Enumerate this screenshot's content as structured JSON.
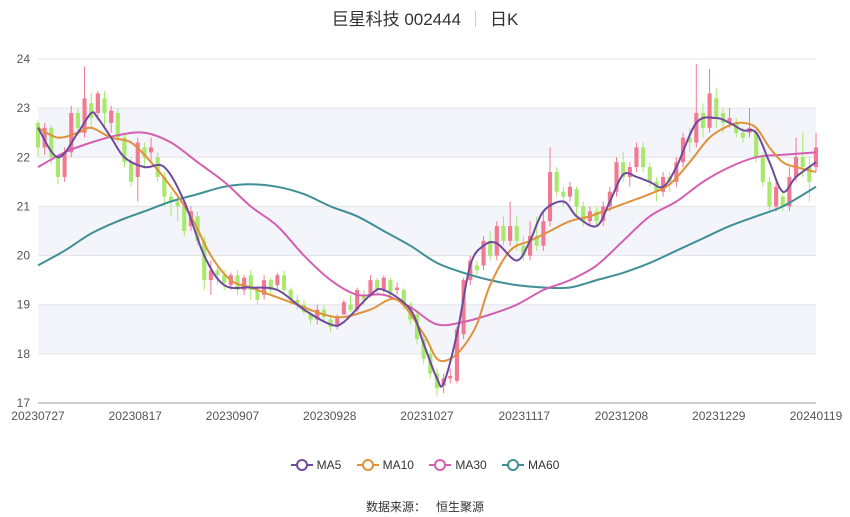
{
  "header": {
    "stock": "巨星科技 002444",
    "period": "日K"
  },
  "source": {
    "label": "数据来源：",
    "value": "恒生聚源"
  },
  "colors": {
    "up": "#f17a92",
    "down": "#a8e86a",
    "MA5": "#6e4a9e",
    "MA10": "#e0913b",
    "MA30": "#d45fb0",
    "MA60": "#3f8f94",
    "band": "#f4f5fa"
  },
  "chart_data": {
    "type": "candlestick",
    "y_ticks": [
      17,
      18,
      19,
      20,
      21,
      22,
      23,
      24
    ],
    "ylim": [
      17,
      24
    ],
    "x_ticks": [
      "20230727",
      "20230817",
      "20230907",
      "20230928",
      "20231027",
      "20231117",
      "20231208",
      "20231229",
      "20240119"
    ],
    "legend": [
      "MA5",
      "MA10",
      "MA30",
      "MA60"
    ],
    "candle_count": 118,
    "candles": [
      [
        22.7,
        22.2,
        22.75,
        22.0
      ],
      [
        22.2,
        22.6,
        22.7,
        22.05
      ],
      [
        22.6,
        22.0,
        22.65,
        21.85
      ],
      [
        22.0,
        21.6,
        22.05,
        21.45
      ],
      [
        21.6,
        22.1,
        22.2,
        21.5
      ],
      [
        22.1,
        22.9,
        23.05,
        22.0
      ],
      [
        22.9,
        22.6,
        23.0,
        22.45
      ],
      [
        22.5,
        23.2,
        23.85,
        22.4
      ],
      [
        23.1,
        22.8,
        23.3,
        22.6
      ],
      [
        22.9,
        23.3,
        23.35,
        22.75
      ],
      [
        23.2,
        22.9,
        23.35,
        22.6
      ],
      [
        22.7,
        22.95,
        23.05,
        22.5
      ],
      [
        22.9,
        22.4,
        23.0,
        22.3
      ],
      [
        22.4,
        21.9,
        22.5,
        21.8
      ],
      [
        21.9,
        21.5,
        22.0,
        21.4
      ],
      [
        21.6,
        22.3,
        22.4,
        21.1
      ],
      [
        22.2,
        22.0,
        22.3,
        21.8
      ],
      [
        22.1,
        22.2,
        22.4,
        21.9
      ],
      [
        22.0,
        21.6,
        22.1,
        21.5
      ],
      [
        21.6,
        21.2,
        21.7,
        21.0
      ],
      [
        21.2,
        21.1,
        21.3,
        20.8
      ],
      [
        21.1,
        21.0,
        21.2,
        20.7
      ],
      [
        21.0,
        20.5,
        21.1,
        20.4
      ],
      [
        20.6,
        20.9,
        21.0,
        20.5
      ],
      [
        20.8,
        20.3,
        20.9,
        20.2
      ],
      [
        20.3,
        19.5,
        20.4,
        19.3
      ],
      [
        19.5,
        19.7,
        19.9,
        19.2
      ],
      [
        19.7,
        19.6,
        19.8,
        19.4
      ],
      [
        19.6,
        19.45,
        19.7,
        19.3
      ],
      [
        19.4,
        19.6,
        19.65,
        19.3
      ],
      [
        19.6,
        19.3,
        19.7,
        19.2
      ],
      [
        19.3,
        19.55,
        19.6,
        19.2
      ],
      [
        19.6,
        19.3,
        19.7,
        19.1
      ],
      [
        19.3,
        19.1,
        19.4,
        19.0
      ],
      [
        19.2,
        19.5,
        19.6,
        19.1
      ],
      [
        19.5,
        19.3,
        19.55,
        19.2
      ],
      [
        19.4,
        19.6,
        19.65,
        19.3
      ],
      [
        19.6,
        19.3,
        19.7,
        19.2
      ],
      [
        19.3,
        19.1,
        19.35,
        19.0
      ],
      [
        19.1,
        19.0,
        19.2,
        18.9
      ],
      [
        19.0,
        18.85,
        19.1,
        18.8
      ],
      [
        18.8,
        18.7,
        18.9,
        18.6
      ],
      [
        18.7,
        18.9,
        19.0,
        18.6
      ],
      [
        18.9,
        18.75,
        19.0,
        18.65
      ],
      [
        18.7,
        18.55,
        18.8,
        18.45
      ],
      [
        18.55,
        18.75,
        18.8,
        18.5
      ],
      [
        18.8,
        19.05,
        19.1,
        18.8
      ],
      [
        19.0,
        18.9,
        19.2,
        18.85
      ],
      [
        18.9,
        19.3,
        19.35,
        18.85
      ],
      [
        19.2,
        19.1,
        19.3,
        19.0
      ],
      [
        19.2,
        19.5,
        19.6,
        19.15
      ],
      [
        19.5,
        19.3,
        19.55,
        19.2
      ],
      [
        19.3,
        19.55,
        19.6,
        19.25
      ],
      [
        19.5,
        19.2,
        19.55,
        19.1
      ],
      [
        19.3,
        19.35,
        19.45,
        19.2
      ],
      [
        19.3,
        19.0,
        19.35,
        18.9
      ],
      [
        19.0,
        18.7,
        19.05,
        18.6
      ],
      [
        18.8,
        18.3,
        18.9,
        18.2
      ],
      [
        18.3,
        17.9,
        18.4,
        17.8
      ],
      [
        18.0,
        17.6,
        18.1,
        17.5
      ],
      [
        17.6,
        17.3,
        17.7,
        17.15
      ],
      [
        17.35,
        17.5,
        17.6,
        17.2
      ],
      [
        17.5,
        17.55,
        17.7,
        17.4
      ],
      [
        17.45,
        18.5,
        18.55,
        17.4
      ],
      [
        18.4,
        19.5,
        19.55,
        18.3
      ],
      [
        19.5,
        19.9,
        20.0,
        19.4
      ],
      [
        19.8,
        19.7,
        19.9,
        19.6
      ],
      [
        19.8,
        20.3,
        20.4,
        19.7
      ],
      [
        20.3,
        20.0,
        20.5,
        19.9
      ],
      [
        20.0,
        20.6,
        20.7,
        19.9
      ],
      [
        20.6,
        20.3,
        20.8,
        20.2
      ],
      [
        20.3,
        20.6,
        21.1,
        20.2
      ],
      [
        20.6,
        20.3,
        20.8,
        20.1
      ],
      [
        20.2,
        20.0,
        20.4,
        19.9
      ],
      [
        20.0,
        20.4,
        20.7,
        19.9
      ],
      [
        20.4,
        20.2,
        20.8,
        20.1
      ],
      [
        20.2,
        20.7,
        20.9,
        20.1
      ],
      [
        20.7,
        21.7,
        22.2,
        20.6
      ],
      [
        21.7,
        21.3,
        21.8,
        21.2
      ],
      [
        21.3,
        21.2,
        21.4,
        21.0
      ],
      [
        21.2,
        21.4,
        21.5,
        21.1
      ],
      [
        21.35,
        21.0,
        21.4,
        20.8
      ],
      [
        21.0,
        20.7,
        21.1,
        20.6
      ],
      [
        20.7,
        20.9,
        21.0,
        20.6
      ],
      [
        20.9,
        20.7,
        21.0,
        20.6
      ],
      [
        20.7,
        21.0,
        21.1,
        20.6
      ],
      [
        21.0,
        21.3,
        21.4,
        20.9
      ],
      [
        21.3,
        21.9,
        22.0,
        21.2
      ],
      [
        21.9,
        21.6,
        22.1,
        21.5
      ],
      [
        21.6,
        21.8,
        21.9,
        21.4
      ],
      [
        21.8,
        22.2,
        22.3,
        21.7
      ],
      [
        22.2,
        21.8,
        22.3,
        21.7
      ],
      [
        21.8,
        21.5,
        21.9,
        21.4
      ],
      [
        21.5,
        21.3,
        21.6,
        21.1
      ],
      [
        21.3,
        21.6,
        21.7,
        21.2
      ],
      [
        21.6,
        21.5,
        21.7,
        21.3
      ],
      [
        21.5,
        21.9,
        22.0,
        21.4
      ],
      [
        21.9,
        22.4,
        22.5,
        21.8
      ],
      [
        22.4,
        22.3,
        22.6,
        22.1
      ],
      [
        22.3,
        22.9,
        23.9,
        22.2
      ],
      [
        22.9,
        22.6,
        23.1,
        22.4
      ],
      [
        22.6,
        23.3,
        23.8,
        22.5
      ],
      [
        23.2,
        22.8,
        23.4,
        22.6
      ],
      [
        22.9,
        22.7,
        23.0,
        22.5
      ],
      [
        22.7,
        22.8,
        23.0,
        22.6
      ],
      [
        22.7,
        22.5,
        22.8,
        22.4
      ],
      [
        22.5,
        22.4,
        22.6,
        22.3
      ],
      [
        22.5,
        22.6,
        23.0,
        22.4
      ],
      [
        22.5,
        22.0,
        22.6,
        21.9
      ],
      [
        22.0,
        21.5,
        22.1,
        21.4
      ],
      [
        21.5,
        21.0,
        21.6,
        20.9
      ],
      [
        21.0,
        21.4,
        21.5,
        20.9
      ],
      [
        21.2,
        21.0,
        21.3,
        20.9
      ],
      [
        21.0,
        21.6,
        21.8,
        20.9
      ],
      [
        21.6,
        22.0,
        22.4,
        21.5
      ],
      [
        22.0,
        21.8,
        22.5,
        21.6
      ],
      [
        21.8,
        21.5,
        22.0,
        21.1
      ],
      [
        21.8,
        22.2,
        22.5,
        21.7
      ]
    ],
    "ma": {
      "MA5": {
        "i": [
          0,
          3,
          6,
          8,
          9,
          11,
          13,
          16,
          19,
          22,
          25,
          28,
          32,
          36,
          40,
          44,
          46,
          50,
          52,
          56,
          58,
          60,
          61,
          63,
          65,
          67,
          69,
          72,
          74,
          76,
          79,
          81,
          84,
          86,
          88,
          90,
          92,
          94,
          96,
          99,
          102,
          104,
          106,
          108,
          110,
          112,
          114,
          117
        ],
        "v": [
          22.6,
          22.0,
          22.5,
          22.9,
          22.8,
          22.4,
          22.0,
          21.8,
          21.8,
          21.1,
          20.0,
          19.4,
          19.35,
          19.3,
          18.9,
          18.6,
          18.65,
          19.2,
          19.3,
          18.9,
          18.2,
          17.5,
          17.4,
          18.4,
          19.8,
          20.2,
          20.25,
          19.9,
          20.3,
          20.9,
          21.1,
          20.8,
          20.6,
          21.1,
          21.65,
          21.6,
          21.5,
          21.4,
          21.8,
          22.7,
          22.8,
          22.7,
          22.55,
          22.5,
          21.9,
          21.3,
          21.6,
          21.9
        ]
      },
      "MA10": {
        "i": [
          0,
          3,
          6,
          8,
          11,
          14,
          17,
          20,
          23,
          26,
          29,
          32,
          35,
          39,
          43,
          46,
          50,
          54,
          58,
          60,
          62,
          64,
          66,
          68,
          71,
          74,
          77,
          80,
          83,
          86,
          89,
          92,
          95,
          98,
          101,
          104,
          106,
          108,
          110,
          112,
          114,
          117
        ],
        "v": [
          22.6,
          22.4,
          22.5,
          22.6,
          22.4,
          22.3,
          21.9,
          21.4,
          20.8,
          20.0,
          19.5,
          19.35,
          19.2,
          19.0,
          18.8,
          18.75,
          18.9,
          19.1,
          18.4,
          17.9,
          17.9,
          18.15,
          18.6,
          19.4,
          20.1,
          20.3,
          20.5,
          20.7,
          20.8,
          20.95,
          21.1,
          21.25,
          21.45,
          21.9,
          22.4,
          22.65,
          22.7,
          22.6,
          22.2,
          21.9,
          21.8,
          21.7
        ]
      },
      "MA30": {
        "i": [
          0,
          4,
          8,
          12,
          16,
          20,
          24,
          28,
          32,
          36,
          40,
          44,
          48,
          52,
          56,
          60,
          64,
          68,
          72,
          76,
          80,
          84,
          88,
          92,
          96,
          100,
          104,
          108,
          112,
          117
        ],
        "v": [
          21.8,
          22.1,
          22.3,
          22.45,
          22.5,
          22.3,
          21.9,
          21.5,
          21.0,
          20.6,
          20.0,
          19.5,
          19.2,
          19.2,
          18.95,
          18.6,
          18.65,
          18.8,
          19.0,
          19.3,
          19.5,
          19.8,
          20.3,
          20.8,
          21.1,
          21.5,
          21.8,
          22.0,
          22.05,
          22.1
        ]
      },
      "MA60": {
        "i": [
          0,
          4,
          8,
          12,
          16,
          20,
          24,
          28,
          32,
          36,
          40,
          44,
          48,
          52,
          56,
          60,
          64,
          68,
          72,
          76,
          80,
          84,
          88,
          92,
          96,
          100,
          104,
          108,
          112,
          117
        ],
        "v": [
          19.8,
          20.1,
          20.45,
          20.7,
          20.9,
          21.1,
          21.25,
          21.4,
          21.45,
          21.4,
          21.25,
          21.0,
          20.8,
          20.5,
          20.2,
          19.85,
          19.65,
          19.5,
          19.4,
          19.35,
          19.35,
          19.5,
          19.65,
          19.85,
          20.1,
          20.35,
          20.6,
          20.8,
          21.0,
          21.4
        ]
      }
    }
  }
}
